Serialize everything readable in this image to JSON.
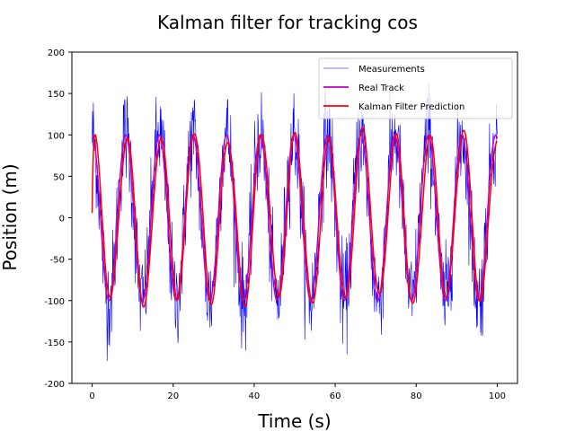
{
  "chart_data": {
    "type": "line",
    "title": "Kalman filter for tracking cos",
    "xlabel": "Time (s)",
    "ylabel": "Position (m)",
    "xlim": [
      -5,
      105
    ],
    "ylim": [
      -200,
      200
    ],
    "xticks": [
      0,
      20,
      40,
      60,
      80,
      100
    ],
    "yticks": [
      -200,
      -150,
      -100,
      -50,
      0,
      50,
      100,
      150,
      200
    ],
    "grid": false,
    "legend_position": "top-right",
    "series": [
      {
        "name": "Measurements",
        "color": "#0000ff",
        "style": "thin noisy line",
        "description_of_signal": "cosine of amplitude 100 with additive noise",
        "amplitude": 100,
        "period": 8.3,
        "x_range": [
          0,
          100
        ],
        "noise_std": 30
      },
      {
        "name": "Real Track",
        "color": "#bf00bf",
        "style": "solid line",
        "amplitude": 100,
        "period": 8.3,
        "x_range": [
          0,
          100
        ]
      },
      {
        "name": "Kalman Filter Prediction",
        "color": "#ff0000",
        "style": "solid line",
        "amplitude": 100,
        "period": 8.3,
        "x_range": [
          0,
          100
        ],
        "start_value": 0
      }
    ]
  }
}
